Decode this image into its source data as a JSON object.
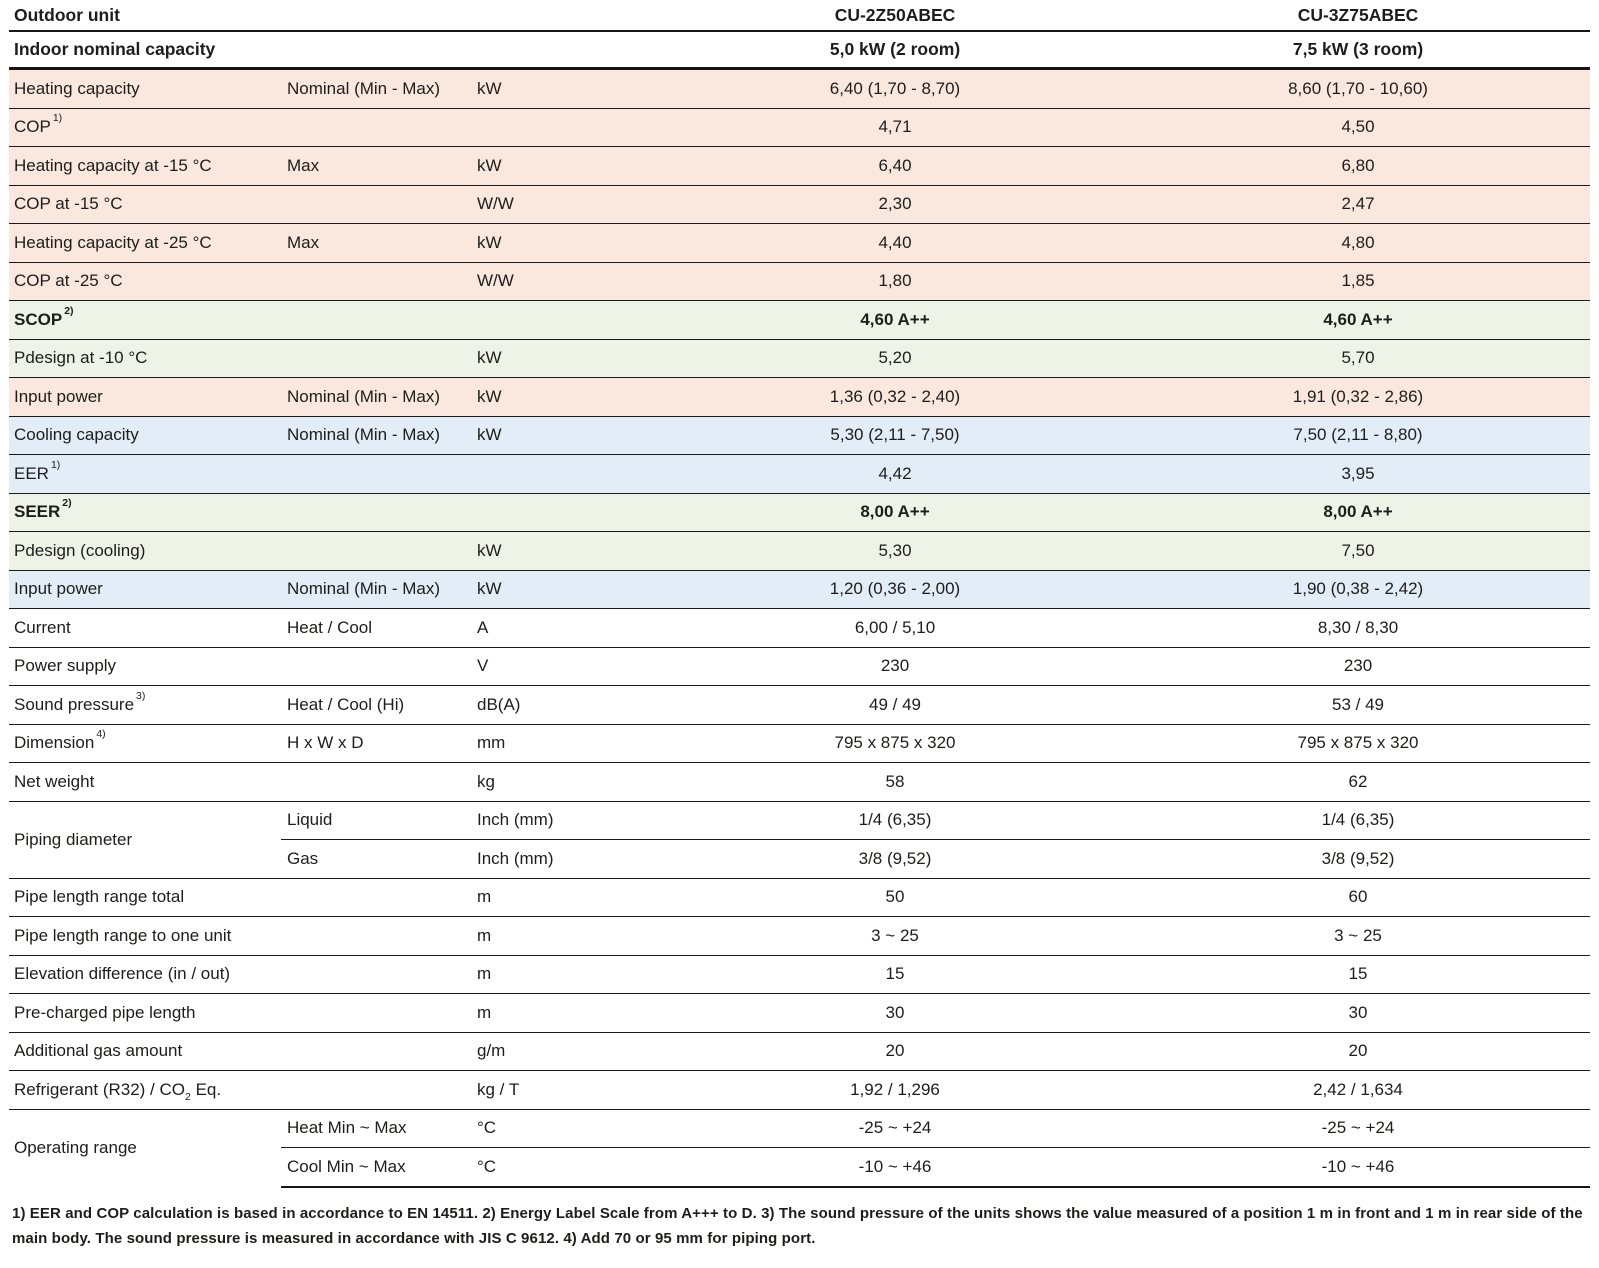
{
  "header": {
    "outdoor_unit_label": "Outdoor unit",
    "model1": "CU-2Z50ABEC",
    "model2": "CU-3Z75ABEC",
    "indoor_capacity_label": "Indoor nominal capacity",
    "capacity1": "5,0 kW (2 room)",
    "capacity2": "7,5 kW (3 room)"
  },
  "colors": {
    "heating_row": "#fae8de",
    "seasonal_row": "#edf3e7",
    "cooling_row": "#e2edf7",
    "line": "#161616"
  },
  "rows": [
    {
      "label": "Heating capacity",
      "detail": "Nominal (Min - Max)",
      "unit": "kW",
      "values": [
        "6,40 (1,70 - 8,70)",
        "8,60 (1,70 - 10,60)"
      ],
      "bg": "pink"
    },
    {
      "label": "COP",
      "sup": "1)",
      "detail": "",
      "unit": "",
      "values": [
        "4,71",
        "4,50"
      ],
      "bg": "pink"
    },
    {
      "label": "Heating capacity at -15 °C",
      "detail": "Max",
      "unit": "kW",
      "values": [
        "6,40",
        "6,80"
      ],
      "bg": "pink"
    },
    {
      "label": "COP at -15 °C",
      "detail": "",
      "unit": "W/W",
      "values": [
        "2,30",
        "2,47"
      ],
      "bg": "pink"
    },
    {
      "label": "Heating capacity at -25 °C",
      "detail": "Max",
      "unit": "kW",
      "values": [
        "4,40",
        "4,80"
      ],
      "bg": "pink"
    },
    {
      "label": "COP at -25 °C",
      "detail": "",
      "unit": "W/W",
      "values": [
        "1,80",
        "1,85"
      ],
      "bg": "pink"
    },
    {
      "label": "SCOP",
      "sup": "2)",
      "detail": "",
      "unit": "",
      "values": [
        "4,60 A++",
        "4,60 A++"
      ],
      "bg": "green",
      "bold": true
    },
    {
      "label": "Pdesign at -10 °C",
      "detail": "",
      "unit": "kW",
      "values": [
        "5,20",
        "5,70"
      ],
      "bg": "green"
    },
    {
      "label": "Input power",
      "detail": "Nominal (Min - Max)",
      "unit": "kW",
      "values": [
        "1,36 (0,32 - 2,40)",
        "1,91 (0,32 - 2,86)"
      ],
      "bg": "pink"
    },
    {
      "label": "Cooling capacity",
      "detail": "Nominal (Min - Max)",
      "unit": "kW",
      "values": [
        "5,30 (2,11 - 7,50)",
        "7,50 (2,11 - 8,80)"
      ],
      "bg": "blue"
    },
    {
      "label": "EER",
      "sup": "1)",
      "detail": "",
      "unit": "",
      "values": [
        "4,42",
        "3,95"
      ],
      "bg": "blue"
    },
    {
      "label": "SEER",
      "sup": "2)",
      "detail": "",
      "unit": "",
      "values": [
        "8,00 A++",
        "8,00 A++"
      ],
      "bg": "green",
      "bold": true
    },
    {
      "label": "Pdesign (cooling)",
      "detail": "",
      "unit": "kW",
      "values": [
        "5,30",
        "7,50"
      ],
      "bg": "green"
    },
    {
      "label": "Input power",
      "detail": "Nominal (Min - Max)",
      "unit": "kW",
      "values": [
        "1,20 (0,36 - 2,00)",
        "1,90 (0,38 - 2,42)"
      ],
      "bg": "blue"
    },
    {
      "label": "Current",
      "detail": "Heat / Cool",
      "unit": "A",
      "values": [
        "6,00 / 5,10",
        "8,30 / 8,30"
      ],
      "bg": "white"
    },
    {
      "label": "Power supply",
      "detail": "",
      "unit": "V",
      "values": [
        "230",
        "230"
      ],
      "bg": "white"
    },
    {
      "label": "Sound pressure",
      "sup": "3)",
      "detail": "Heat / Cool (Hi)",
      "unit": "dB(A)",
      "values": [
        "49 / 49",
        "53 / 49"
      ],
      "bg": "white"
    },
    {
      "label": "Dimension",
      "sup": "4)",
      "detail": "H x W x D",
      "unit": "mm",
      "values": [
        "795 x 875 x 320",
        "795 x 875 x 320"
      ],
      "bg": "white"
    },
    {
      "label": "Net weight",
      "detail": "",
      "unit": "kg",
      "values": [
        "58",
        "62"
      ],
      "bg": "white"
    },
    {
      "group": "Piping diameter",
      "group_span": 2,
      "detail": "Liquid",
      "unit": "Inch (mm)",
      "values": [
        "1/4 (6,35)",
        "1/4 (6,35)"
      ],
      "bg": "white"
    },
    {
      "grouped": true,
      "detail": "Gas",
      "unit": "Inch (mm)",
      "values": [
        "3/8 (9,52)",
        "3/8 (9,52)"
      ],
      "bg": "white"
    },
    {
      "label": "Pipe length range total",
      "detail": "",
      "unit": "m",
      "values": [
        "50",
        "60"
      ],
      "bg": "white"
    },
    {
      "label": "Pipe length range to one unit",
      "detail": "",
      "unit": "m",
      "values": [
        "3 ~ 25",
        "3 ~ 25"
      ],
      "bg": "white"
    },
    {
      "label": "Elevation difference (in / out)",
      "detail": "",
      "unit": "m",
      "values": [
        "15",
        "15"
      ],
      "bg": "white"
    },
    {
      "label": "Pre-charged pipe length",
      "detail": "",
      "unit": "m",
      "values": [
        "30",
        "30"
      ],
      "bg": "white"
    },
    {
      "label": "Additional gas amount",
      "detail": "",
      "unit": "g/m",
      "values": [
        "20",
        "20"
      ],
      "bg": "white"
    },
    {
      "label": "Refrigerant (R32) / CO",
      "sub": "2",
      "label_post": " Eq.",
      "detail": "",
      "unit": "kg / T",
      "values": [
        "1,92 / 1,296",
        "2,42 / 1,634"
      ],
      "bg": "white"
    },
    {
      "group": "Operating range",
      "group_span": 2,
      "detail": "Heat Min ~ Max",
      "unit": "°C",
      "values": [
        "-25 ~ +24",
        "-25 ~ +24"
      ],
      "bg": "white"
    },
    {
      "grouped": true,
      "detail": "Cool Min ~ Max",
      "unit": "°C",
      "values": [
        "-10 ~ +46",
        "-10 ~ +46"
      ],
      "bg": "white"
    }
  ],
  "footnote": "1) EER and COP calculation is based in accordance to EN 14511. 2) Energy Label Scale from A+++ to D. 3) The sound pressure of the units shows the value measured of a position 1 m in front and 1 m in rear side of the main body. The sound pressure is measured in accordance with JIS C 9612. 4) Add 70 or 95 mm for piping port."
}
